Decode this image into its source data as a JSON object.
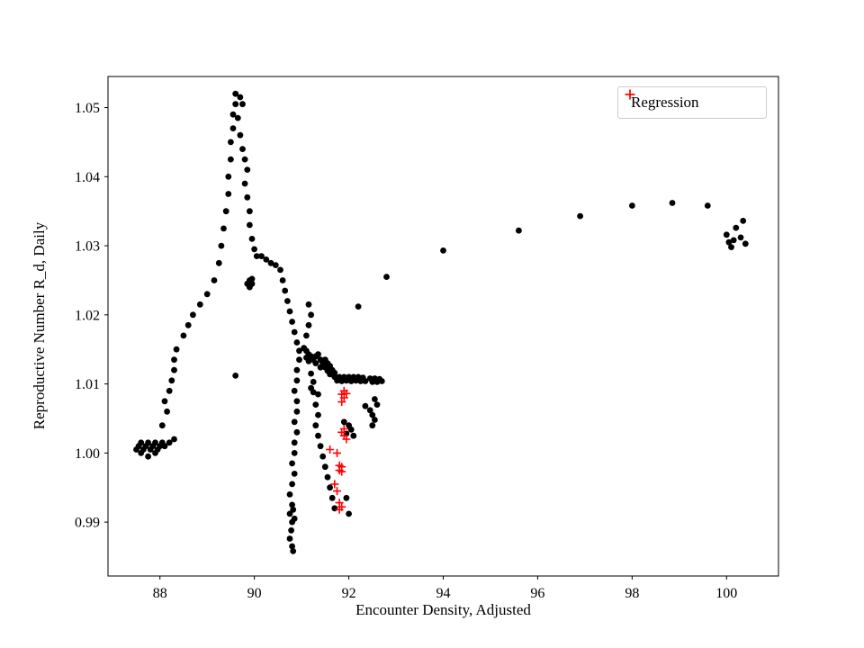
{
  "figure": {
    "background": "#ffffff"
  },
  "chart_data": {
    "type": "scatter",
    "title": "",
    "xlabel": "Encounter Density, Adjusted",
    "ylabel": "Reproductive Number R_d, Daily",
    "xlim": [
      86.9,
      101.1
    ],
    "ylim": [
      0.9822,
      1.0545
    ],
    "grid": false,
    "x_ticks": [
      88,
      90,
      92,
      94,
      96,
      98,
      100
    ],
    "x_tick_labels": [
      "88",
      "90",
      "92",
      "94",
      "96",
      "98",
      "100"
    ],
    "y_ticks": [
      0.99,
      1.0,
      1.01,
      1.02,
      1.03,
      1.04,
      1.05
    ],
    "y_tick_labels": [
      "0.99",
      "1.00",
      "1.01",
      "1.02",
      "1.03",
      "1.04",
      "1.05"
    ],
    "legend": {
      "position": "upper right",
      "entries": [
        {
          "label": "Regression",
          "marker": "plus",
          "color": "#ff0000"
        }
      ]
    },
    "series": [
      {
        "name": "observations",
        "marker": "circle",
        "color": "#000000",
        "points": [
          [
            87.5,
            1.0005
          ],
          [
            87.55,
            1.001
          ],
          [
            87.6,
            1.0
          ],
          [
            87.6,
            1.0015
          ],
          [
            87.65,
            1.0005
          ],
          [
            87.7,
            1.001
          ],
          [
            87.75,
            0.9995
          ],
          [
            87.75,
            1.0015
          ],
          [
            87.8,
            1.0005
          ],
          [
            87.85,
            1.001
          ],
          [
            87.9,
            1.0
          ],
          [
            87.9,
            1.0015
          ],
          [
            87.95,
            1.0005
          ],
          [
            88.0,
            1.001
          ],
          [
            88.05,
            1.0015
          ],
          [
            88.1,
            1.001
          ],
          [
            88.2,
            1.0015
          ],
          [
            88.3,
            1.002
          ],
          [
            88.05,
            1.004
          ],
          [
            88.15,
            1.006
          ],
          [
            88.1,
            1.0075
          ],
          [
            88.2,
            1.009
          ],
          [
            88.25,
            1.0105
          ],
          [
            88.3,
            1.012
          ],
          [
            88.3,
            1.0135
          ],
          [
            88.35,
            1.015
          ],
          [
            88.5,
            1.017
          ],
          [
            88.6,
            1.0185
          ],
          [
            88.7,
            1.02
          ],
          [
            88.85,
            1.0215
          ],
          [
            89.0,
            1.023
          ],
          [
            89.15,
            1.025
          ],
          [
            89.25,
            1.0275
          ],
          [
            89.3,
            1.03
          ],
          [
            89.35,
            1.0325
          ],
          [
            89.4,
            1.035
          ],
          [
            89.45,
            1.0375
          ],
          [
            89.45,
            1.04
          ],
          [
            89.5,
            1.0425
          ],
          [
            89.5,
            1.045
          ],
          [
            89.55,
            1.047
          ],
          [
            89.55,
            1.049
          ],
          [
            89.6,
            1.0505
          ],
          [
            89.6,
            1.052
          ],
          [
            89.7,
            1.0515
          ],
          [
            89.75,
            1.0505
          ],
          [
            89.65,
            1.0485
          ],
          [
            89.7,
            1.046
          ],
          [
            89.75,
            1.044
          ],
          [
            89.8,
            1.0425
          ],
          [
            89.85,
            1.041
          ],
          [
            89.8,
            1.039
          ],
          [
            89.85,
            1.037
          ],
          [
            89.9,
            1.035
          ],
          [
            89.9,
            1.033
          ],
          [
            89.95,
            1.031
          ],
          [
            90.0,
            1.0295
          ],
          [
            90.05,
            1.0285
          ],
          [
            89.85,
            1.0245
          ],
          [
            89.9,
            1.024
          ],
          [
            89.95,
            1.0245
          ],
          [
            89.9,
            1.025
          ],
          [
            89.95,
            1.0252
          ],
          [
            89.6,
            1.0112
          ],
          [
            90.15,
            1.0285
          ],
          [
            90.25,
            1.028
          ],
          [
            90.35,
            1.0275
          ],
          [
            90.45,
            1.0272
          ],
          [
            90.55,
            1.0265
          ],
          [
            90.6,
            1.025
          ],
          [
            90.65,
            1.0235
          ],
          [
            90.7,
            1.022
          ],
          [
            90.75,
            1.0205
          ],
          [
            90.8,
            1.019
          ],
          [
            90.85,
            1.0175
          ],
          [
            90.9,
            1.016
          ],
          [
            90.95,
            1.0148
          ],
          [
            91.1,
            1.017
          ],
          [
            91.15,
            1.0185
          ],
          [
            91.2,
            1.02
          ],
          [
            91.15,
            1.0215
          ],
          [
            90.95,
            1.0135
          ],
          [
            90.9,
            1.012
          ],
          [
            90.9,
            1.0105
          ],
          [
            90.85,
            1.009
          ],
          [
            90.9,
            1.0075
          ],
          [
            90.9,
            1.006
          ],
          [
            90.85,
            1.0045
          ],
          [
            90.9,
            1.003
          ],
          [
            90.85,
            1.0015
          ],
          [
            90.85,
            1.0
          ],
          [
            90.8,
            0.9985
          ],
          [
            90.85,
            0.997
          ],
          [
            90.8,
            0.9955
          ],
          [
            90.75,
            0.994
          ],
          [
            90.8,
            0.9925
          ],
          [
            90.75,
            0.9912
          ],
          [
            90.8,
            0.99
          ],
          [
            90.78,
            0.9888
          ],
          [
            90.75,
            0.9876
          ],
          [
            90.8,
            0.9865
          ],
          [
            90.82,
            0.9858
          ],
          [
            90.85,
            0.9905
          ],
          [
            90.82,
            0.9918
          ],
          [
            91.05,
            1.0152
          ],
          [
            91.1,
            1.0148
          ],
          [
            91.15,
            1.0143
          ],
          [
            91.2,
            1.014
          ],
          [
            91.1,
            1.0138
          ],
          [
            91.15,
            1.0133
          ],
          [
            91.25,
            1.0135
          ],
          [
            91.3,
            1.014
          ],
          [
            91.35,
            1.0143
          ],
          [
            91.3,
            1.013
          ],
          [
            91.4,
            1.0135
          ],
          [
            91.45,
            1.013
          ],
          [
            91.5,
            1.0135
          ],
          [
            91.55,
            1.013
          ],
          [
            91.4,
            1.0124
          ],
          [
            91.5,
            1.0124
          ],
          [
            91.6,
            1.0126
          ],
          [
            91.55,
            1.0119
          ],
          [
            91.65,
            1.012
          ],
          [
            91.6,
            1.0114
          ],
          [
            91.7,
            1.0116
          ],
          [
            91.7,
            1.011
          ],
          [
            91.2,
            1.0115
          ],
          [
            91.25,
            1.0103
          ],
          [
            91.2,
            1.0094
          ],
          [
            91.25,
            1.0088
          ],
          [
            91.75,
            1.0105
          ],
          [
            91.8,
            1.011
          ],
          [
            91.85,
            1.0104
          ],
          [
            91.9,
            1.011
          ],
          [
            91.95,
            1.0105
          ],
          [
            92.0,
            1.011
          ],
          [
            92.05,
            1.0104
          ],
          [
            92.1,
            1.011
          ],
          [
            92.15,
            1.0105
          ],
          [
            92.2,
            1.011
          ],
          [
            92.25,
            1.0104
          ],
          [
            92.3,
            1.0109
          ],
          [
            92.35,
            1.0104
          ],
          [
            92.45,
            1.0108
          ],
          [
            92.5,
            1.0103
          ],
          [
            92.55,
            1.0108
          ],
          [
            92.6,
            1.0103
          ],
          [
            92.65,
            1.0107
          ],
          [
            92.7,
            1.0104
          ],
          [
            92.35,
            1.0068
          ],
          [
            92.45,
            1.0062
          ],
          [
            92.5,
            1.0055
          ],
          [
            92.55,
            1.0048
          ],
          [
            92.5,
            1.004
          ],
          [
            92.6,
            1.007
          ],
          [
            92.55,
            1.0078
          ],
          [
            91.35,
            1.0085
          ],
          [
            91.3,
            1.007
          ],
          [
            91.35,
            1.0055
          ],
          [
            91.3,
            1.004
          ],
          [
            91.35,
            1.0025
          ],
          [
            91.4,
            1.001
          ],
          [
            91.45,
            0.9995
          ],
          [
            91.5,
            0.998
          ],
          [
            91.55,
            0.9965
          ],
          [
            91.6,
            0.995
          ],
          [
            91.65,
            0.9935
          ],
          [
            91.7,
            0.992
          ],
          [
            91.9,
            1.0045
          ],
          [
            92.0,
            1.004
          ],
          [
            92.05,
            1.0034
          ],
          [
            91.95,
            1.0028
          ],
          [
            92.1,
            1.0025
          ],
          [
            91.95,
            0.9935
          ],
          [
            92.0,
            0.9912
          ],
          [
            92.2,
            1.0212
          ],
          [
            92.8,
            1.0255
          ],
          [
            94.0,
            1.0293
          ],
          [
            95.6,
            1.0322
          ],
          [
            96.9,
            1.0343
          ],
          [
            98.0,
            1.0358
          ],
          [
            98.85,
            1.0362
          ],
          [
            99.6,
            1.0358
          ],
          [
            100.0,
            1.0316
          ],
          [
            100.05,
            1.0305
          ],
          [
            100.1,
            1.0298
          ],
          [
            100.15,
            1.0308
          ],
          [
            100.2,
            1.0326
          ],
          [
            100.3,
            1.0312
          ],
          [
            100.35,
            1.0336
          ],
          [
            100.4,
            1.0303
          ]
        ]
      },
      {
        "name": "regression",
        "marker": "plus",
        "color": "#ff0000",
        "points": [
          [
            91.9,
            1.009
          ],
          [
            91.95,
            1.0086
          ],
          [
            91.85,
            1.0085
          ],
          [
            91.9,
            1.008
          ],
          [
            91.85,
            1.0074
          ],
          [
            91.9,
            1.0035
          ],
          [
            91.85,
            1.003
          ],
          [
            91.9,
            1.0025
          ],
          [
            91.95,
            1.002
          ],
          [
            91.6,
            1.0005
          ],
          [
            91.75,
            1.0
          ],
          [
            91.8,
            0.9982
          ],
          [
            91.85,
            0.998
          ],
          [
            91.8,
            0.9975
          ],
          [
            91.85,
            0.9973
          ],
          [
            91.7,
            0.9955
          ],
          [
            91.75,
            0.9945
          ],
          [
            91.8,
            0.9928
          ],
          [
            91.85,
            0.9922
          ],
          [
            91.8,
            0.9918
          ]
        ]
      }
    ]
  }
}
